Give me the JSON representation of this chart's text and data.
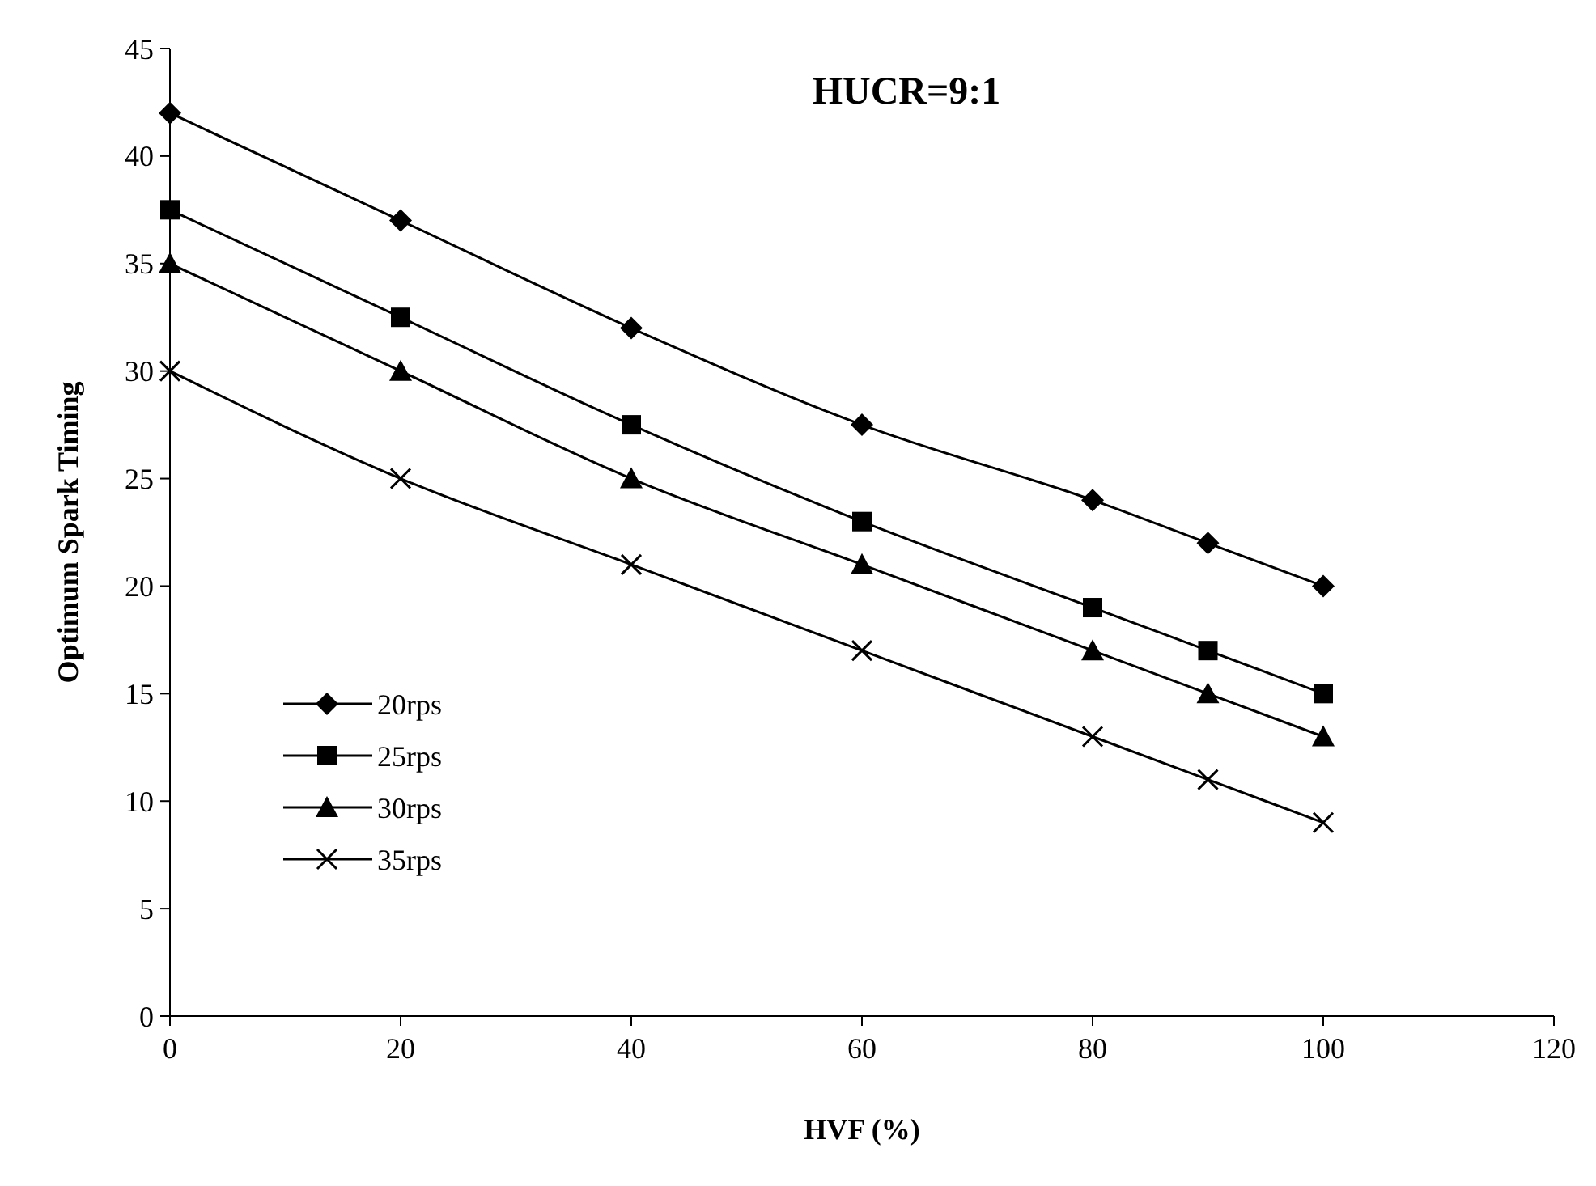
{
  "chart_data": {
    "type": "line",
    "title": "HUCR=9:1",
    "xlabel": "HVF (%)",
    "ylabel": "Optimum Spark Timing",
    "x": [
      0,
      20,
      40,
      60,
      80,
      90,
      100
    ],
    "xlim": [
      0,
      120
    ],
    "xticks": [
      0,
      20,
      40,
      60,
      80,
      100,
      120
    ],
    "ylim": [
      0,
      45
    ],
    "yticks": [
      0,
      5,
      10,
      15,
      20,
      25,
      30,
      35,
      40,
      45
    ],
    "grid": false,
    "legend": "left",
    "line_style": "solid",
    "series": [
      {
        "name": "20rps",
        "color": "#000000",
        "marker": "diamond",
        "values": [
          42,
          37,
          32,
          27.5,
          24,
          22,
          20
        ]
      },
      {
        "name": "25rps",
        "color": "#000000",
        "marker": "square",
        "values": [
          37.5,
          32.5,
          27.5,
          23,
          19,
          17,
          15
        ]
      },
      {
        "name": "30rps",
        "color": "#000000",
        "marker": "triangle",
        "values": [
          35,
          30,
          25,
          21,
          17,
          15,
          13
        ]
      },
      {
        "name": "35rps",
        "color": "#000000",
        "marker": "cross",
        "values": [
          30,
          25,
          21,
          17,
          13,
          11,
          9
        ]
      }
    ]
  }
}
